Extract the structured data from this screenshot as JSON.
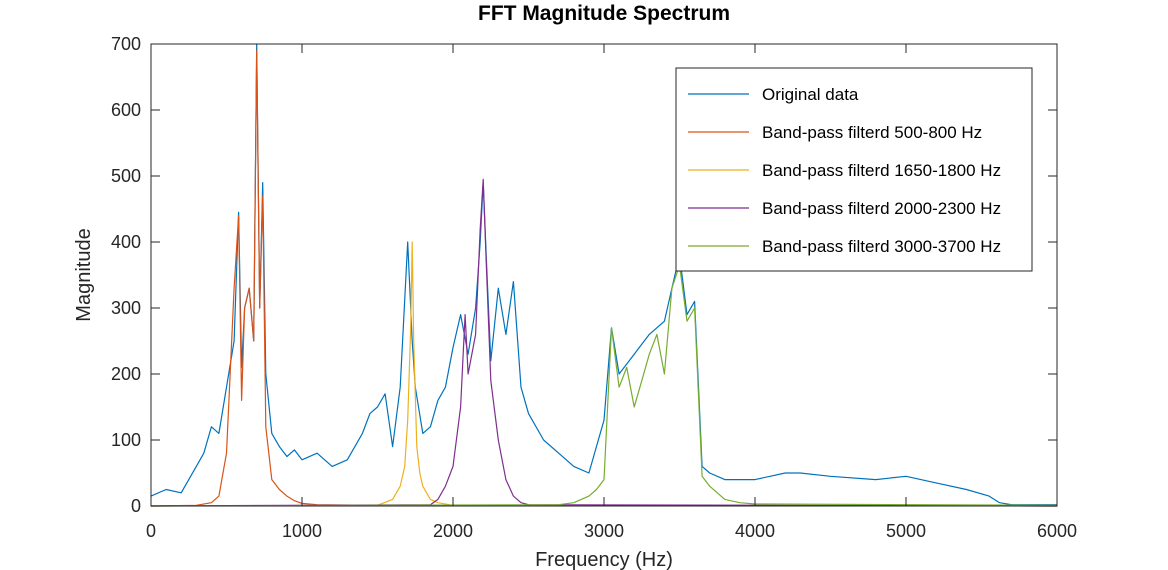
{
  "chart_data": {
    "type": "line",
    "title": "FFT Magnitude Spectrum",
    "xlabel": "Frequency (Hz)",
    "ylabel": "Magnitude",
    "xlim": [
      0,
      6000
    ],
    "ylim": [
      0,
      700
    ],
    "xticks": [
      0,
      1000,
      2000,
      3000,
      4000,
      5000,
      6000
    ],
    "yticks": [
      0,
      100,
      200,
      300,
      400,
      500,
      600,
      700
    ],
    "grid": false,
    "legend_position": "top-right",
    "series": [
      {
        "name": "Original data",
        "color": "#0072BD",
        "x": [
          0,
          100,
          200,
          300,
          350,
          400,
          450,
          500,
          550,
          580,
          600,
          620,
          650,
          680,
          700,
          720,
          740,
          760,
          800,
          850,
          900,
          950,
          1000,
          1100,
          1200,
          1300,
          1400,
          1450,
          1500,
          1550,
          1600,
          1650,
          1700,
          1730,
          1750,
          1800,
          1850,
          1900,
          1950,
          2000,
          2050,
          2100,
          2150,
          2180,
          2200,
          2220,
          2250,
          2300,
          2350,
          2400,
          2450,
          2500,
          2600,
          2700,
          2800,
          2900,
          3000,
          3050,
          3100,
          3200,
          3300,
          3400,
          3450,
          3500,
          3550,
          3600,
          3650,
          3700,
          3800,
          4000,
          4200,
          4300,
          4500,
          4800,
          5000,
          5200,
          5400,
          5550,
          5620,
          5700,
          6000
        ],
        "y": [
          15,
          25,
          20,
          60,
          80,
          120,
          110,
          180,
          250,
          445,
          210,
          300,
          330,
          250,
          700,
          300,
          490,
          200,
          110,
          90,
          75,
          85,
          70,
          80,
          60,
          70,
          110,
          140,
          150,
          170,
          90,
          180,
          400,
          250,
          180,
          110,
          120,
          160,
          180,
          240,
          290,
          230,
          300,
          400,
          490,
          380,
          220,
          330,
          260,
          340,
          180,
          140,
          100,
          80,
          60,
          50,
          130,
          270,
          200,
          230,
          260,
          280,
          330,
          380,
          290,
          310,
          60,
          50,
          40,
          40,
          50,
          50,
          45,
          40,
          45,
          35,
          25,
          15,
          5,
          2,
          2
        ]
      },
      {
        "name": "Band-pass filterd 500-800 Hz",
        "color": "#D95319",
        "x": [
          0,
          300,
          400,
          450,
          500,
          550,
          580,
          600,
          620,
          650,
          680,
          700,
          720,
          740,
          760,
          800,
          850,
          900,
          950,
          1000,
          1100,
          1500,
          6000
        ],
        "y": [
          0,
          1,
          5,
          15,
          80,
          330,
          440,
          160,
          300,
          330,
          250,
          690,
          300,
          470,
          120,
          40,
          25,
          15,
          8,
          4,
          2,
          1,
          0
        ]
      },
      {
        "name": "Band-pass filterd 1650-1800 Hz",
        "color": "#EDB120",
        "x": [
          0,
          1500,
          1600,
          1650,
          1680,
          1700,
          1720,
          1730,
          1740,
          1760,
          1780,
          1800,
          1850,
          1900,
          2000,
          6000
        ],
        "y": [
          0,
          1,
          10,
          30,
          60,
          130,
          270,
          400,
          250,
          90,
          50,
          30,
          10,
          5,
          1,
          0
        ]
      },
      {
        "name": "Band-pass filterd 2000-2300 Hz",
        "color": "#7E2F8E",
        "x": [
          0,
          1850,
          1900,
          1950,
          2000,
          2050,
          2080,
          2100,
          2150,
          2180,
          2200,
          2220,
          2250,
          2300,
          2350,
          2400,
          2450,
          2500,
          6000
        ],
        "y": [
          0,
          2,
          10,
          30,
          60,
          150,
          290,
          200,
          260,
          420,
          495,
          370,
          190,
          100,
          40,
          15,
          5,
          2,
          0
        ]
      },
      {
        "name": "Band-pass filterd 3000-3700 Hz",
        "color": "#77AC30",
        "x": [
          0,
          2700,
          2800,
          2900,
          2950,
          3000,
          3050,
          3100,
          3150,
          3200,
          3250,
          3300,
          3350,
          3400,
          3450,
          3500,
          3550,
          3600,
          3650,
          3700,
          3750,
          3800,
          3900,
          4000,
          6000
        ],
        "y": [
          0,
          2,
          5,
          15,
          25,
          40,
          270,
          180,
          210,
          150,
          190,
          230,
          260,
          200,
          330,
          365,
          280,
          300,
          45,
          30,
          20,
          10,
          5,
          3,
          1
        ]
      }
    ]
  }
}
